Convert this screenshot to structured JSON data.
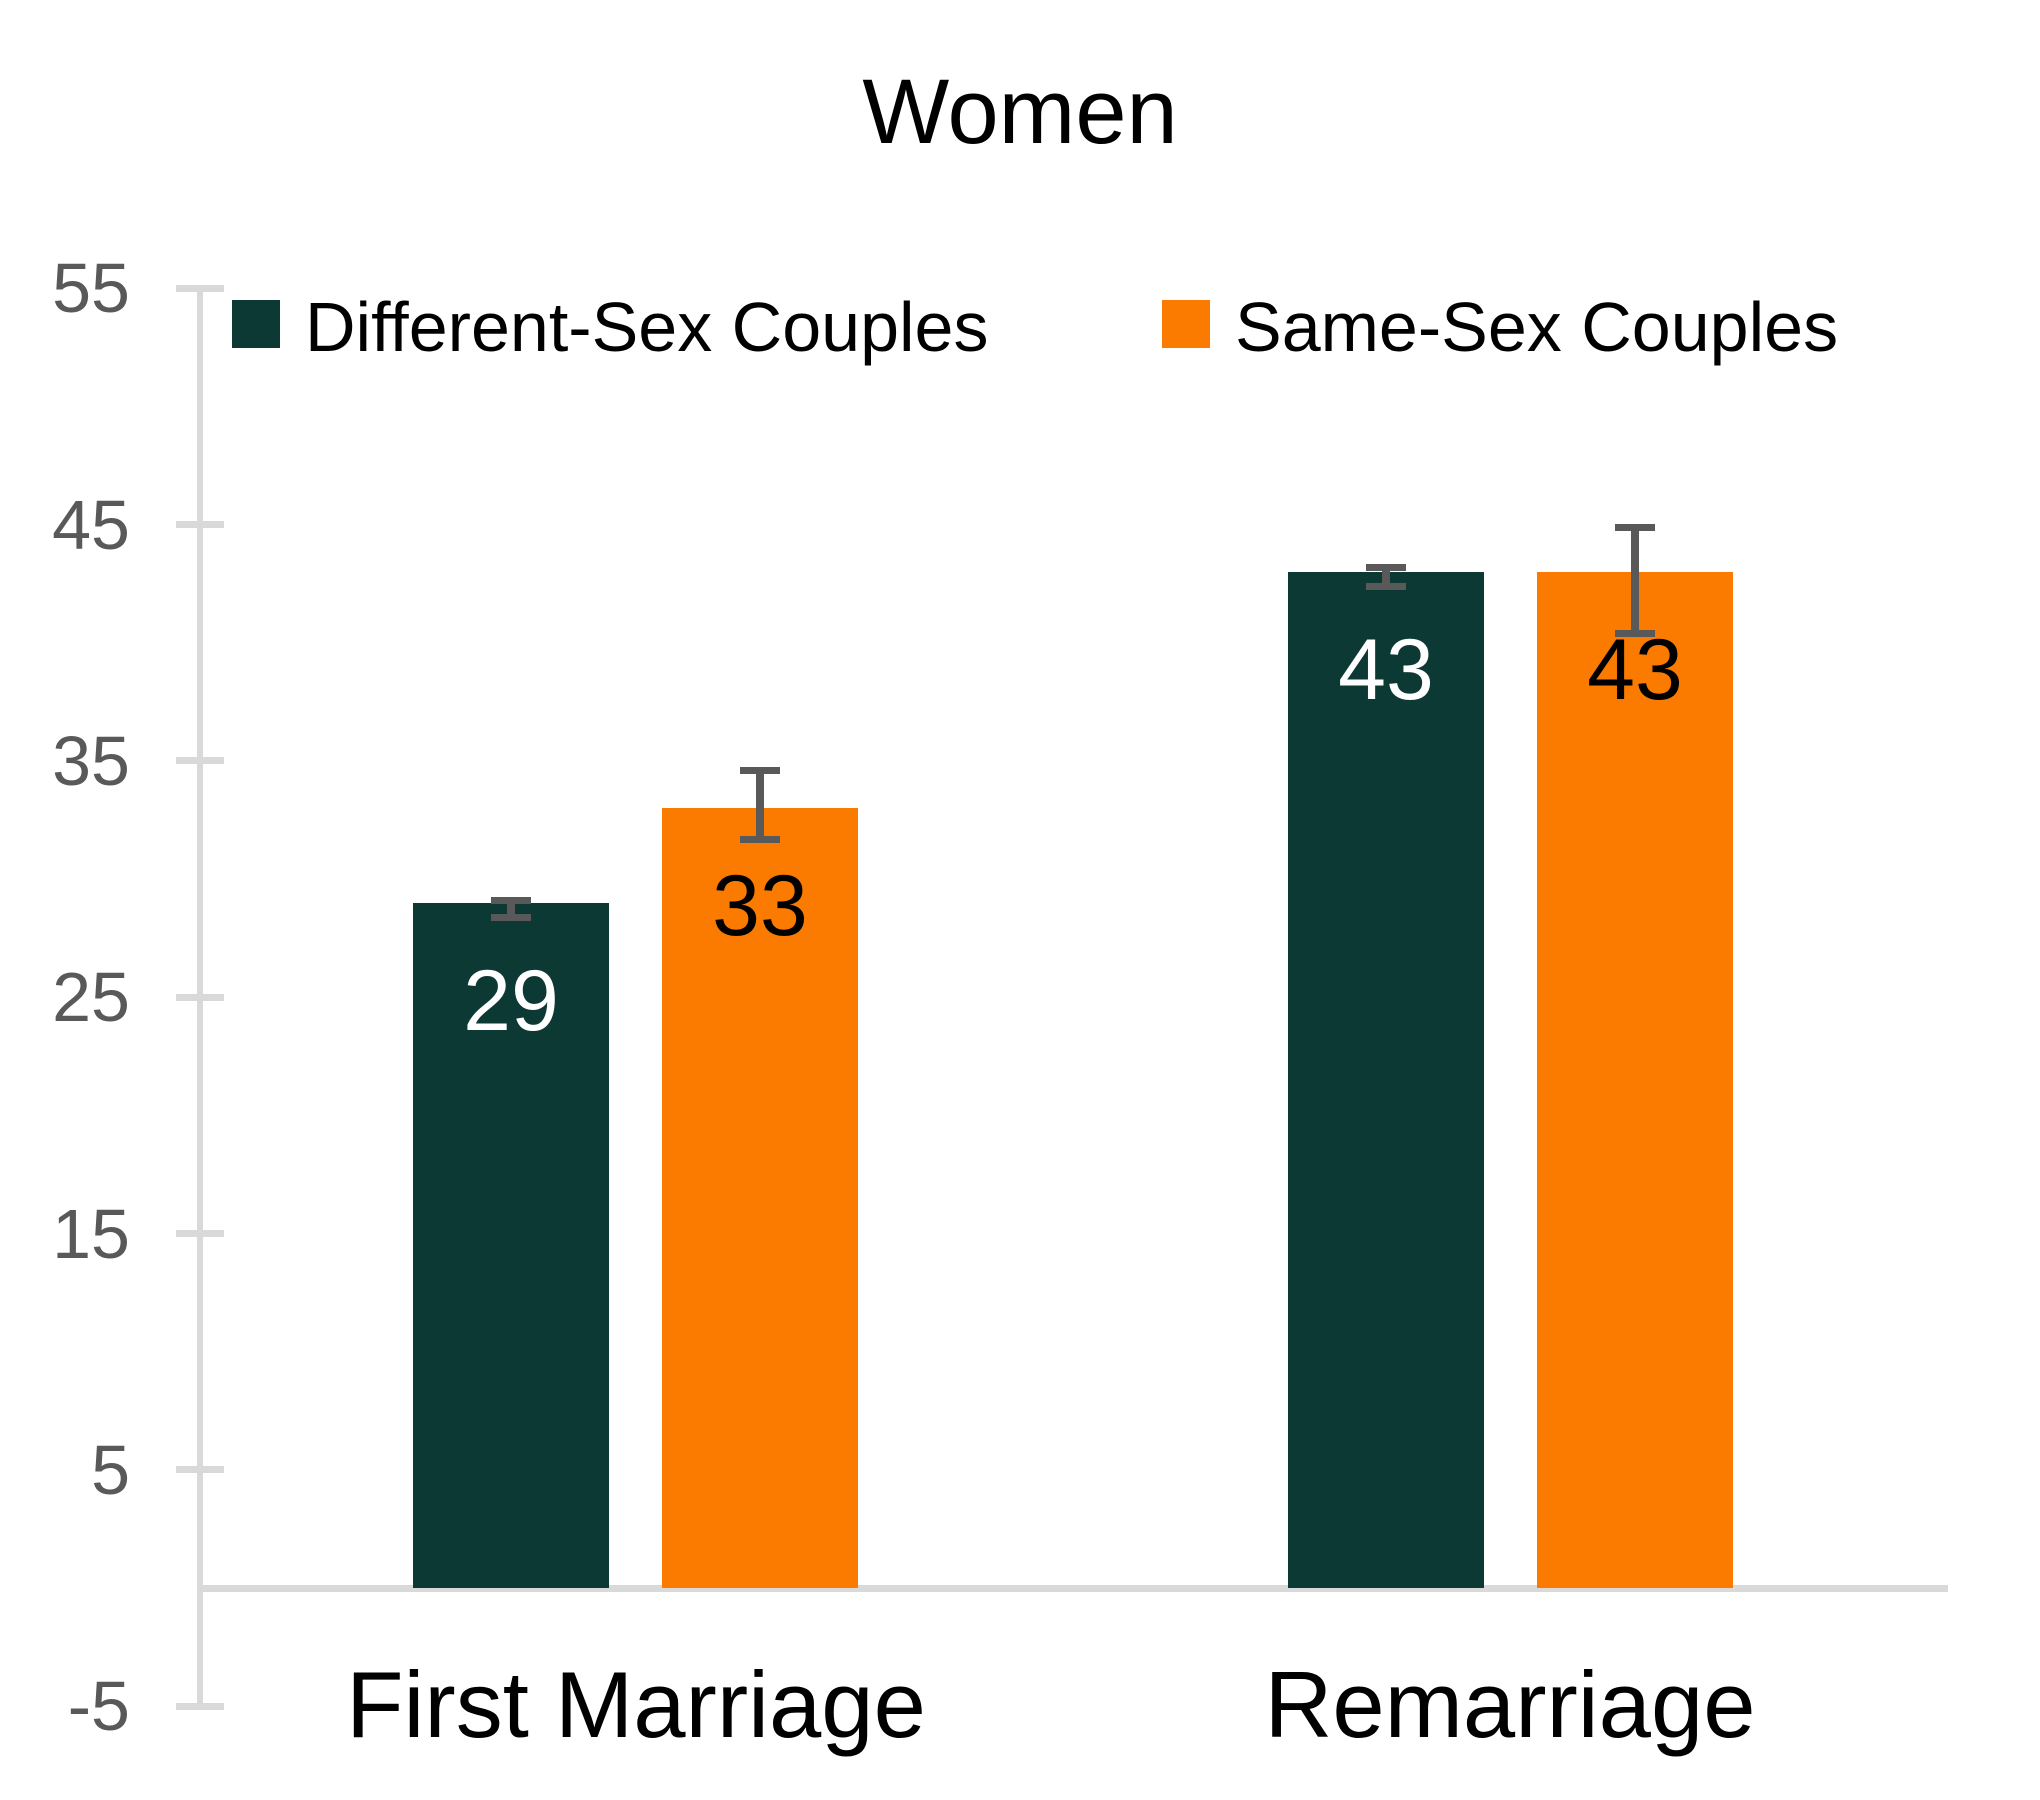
{
  "chart_data": {
    "type": "bar",
    "title": "Women",
    "categories": [
      "First Marriage",
      "Remarriage"
    ],
    "series": [
      {
        "name": "Different-Sex Couples",
        "color": "#0D3935",
        "label_color": "#FFFFFF",
        "values": [
          29,
          43
        ],
        "error_low": [
          28.4,
          42.4
        ],
        "error_high": [
          29.1,
          43.2
        ]
      },
      {
        "name": "Same-Sex Couples",
        "color": "#FB7A00",
        "label_color": "#000000",
        "values": [
          33,
          43
        ],
        "error_low": [
          31.7,
          40.4
        ],
        "error_high": [
          34.6,
          44.9
        ]
      }
    ],
    "ylim": [
      -5,
      55
    ],
    "yticks": [
      55,
      45,
      35,
      25,
      15,
      5,
      -5
    ],
    "grid": false,
    "legend_position": "top",
    "axis_color": "#D9D9D9",
    "tick_label_color": "#595959",
    "error_bar_color": "#595959"
  }
}
